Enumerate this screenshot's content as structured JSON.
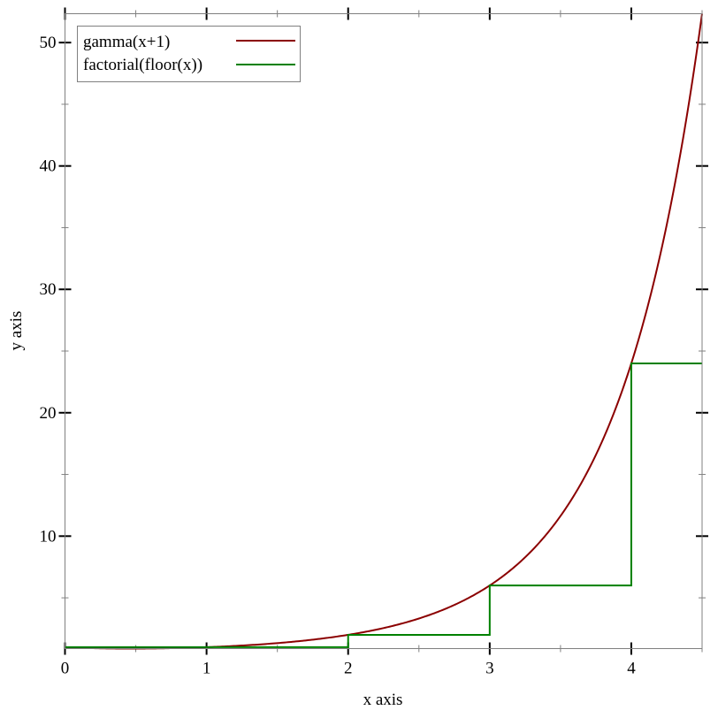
{
  "chart_data": {
    "type": "line",
    "title": "",
    "xlabel": "x axis",
    "ylabel": "y axis",
    "xlim": [
      0,
      4.5
    ],
    "ylim": [
      0.8856,
      52.34
    ],
    "x_ticks": [
      0,
      1,
      2,
      3,
      4
    ],
    "x_minor_ticks": [
      0.5,
      1.5,
      2.5,
      3.5,
      4.5
    ],
    "y_ticks": [
      10,
      20,
      30,
      40,
      50
    ],
    "y_minor_ticks": [
      5,
      15,
      25,
      35,
      45
    ],
    "grid": false,
    "legend_position": "top-left",
    "series": [
      {
        "name": "gamma(x+1)",
        "function": "gamma(x+1)",
        "color": "#8b0000",
        "x": [
          0,
          0.5,
          1,
          1.5,
          2,
          2.5,
          3,
          3.5,
          4,
          4.5
        ],
        "y": [
          1,
          0.886,
          1,
          1.329,
          2,
          3.323,
          6,
          11.632,
          24,
          52.343
        ]
      },
      {
        "name": "factorial(floor(x))",
        "function": "factorial(floor(x))",
        "color": "#008000",
        "x": [
          0,
          1,
          2,
          3,
          4,
          4.5
        ],
        "y": [
          1,
          1,
          2,
          6,
          24,
          24
        ]
      }
    ]
  }
}
